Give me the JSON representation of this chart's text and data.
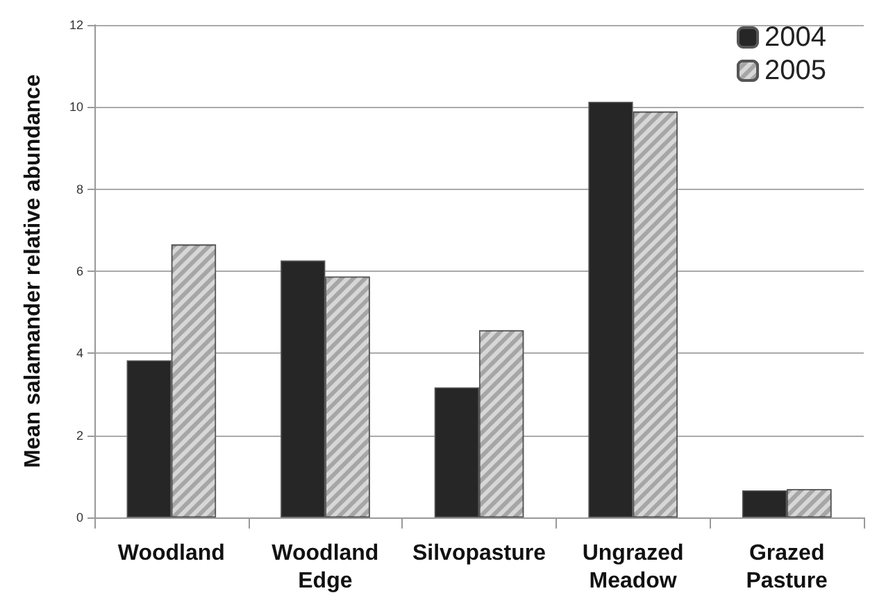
{
  "chart_data": {
    "type": "bar",
    "ylabel": "Mean salamander relative abundance",
    "categories": [
      "Woodland",
      "Woodland Edge",
      "Silvopasture",
      "Ungrazed Meadow",
      "Grazed Pasture"
    ],
    "series": [
      {
        "name": "2004",
        "color": "#262626",
        "values": [
          3.83,
          6.26,
          3.17,
          10.13,
          0.66
        ]
      },
      {
        "name": "2005",
        "color": "#a6a6a6",
        "values": [
          6.65,
          5.87,
          4.56,
          9.89,
          0.69
        ]
      }
    ],
    "ylim": [
      0,
      12
    ],
    "yticks": [
      0,
      2,
      4,
      6,
      8,
      10,
      12
    ],
    "grid": "y",
    "legend": "top right"
  }
}
